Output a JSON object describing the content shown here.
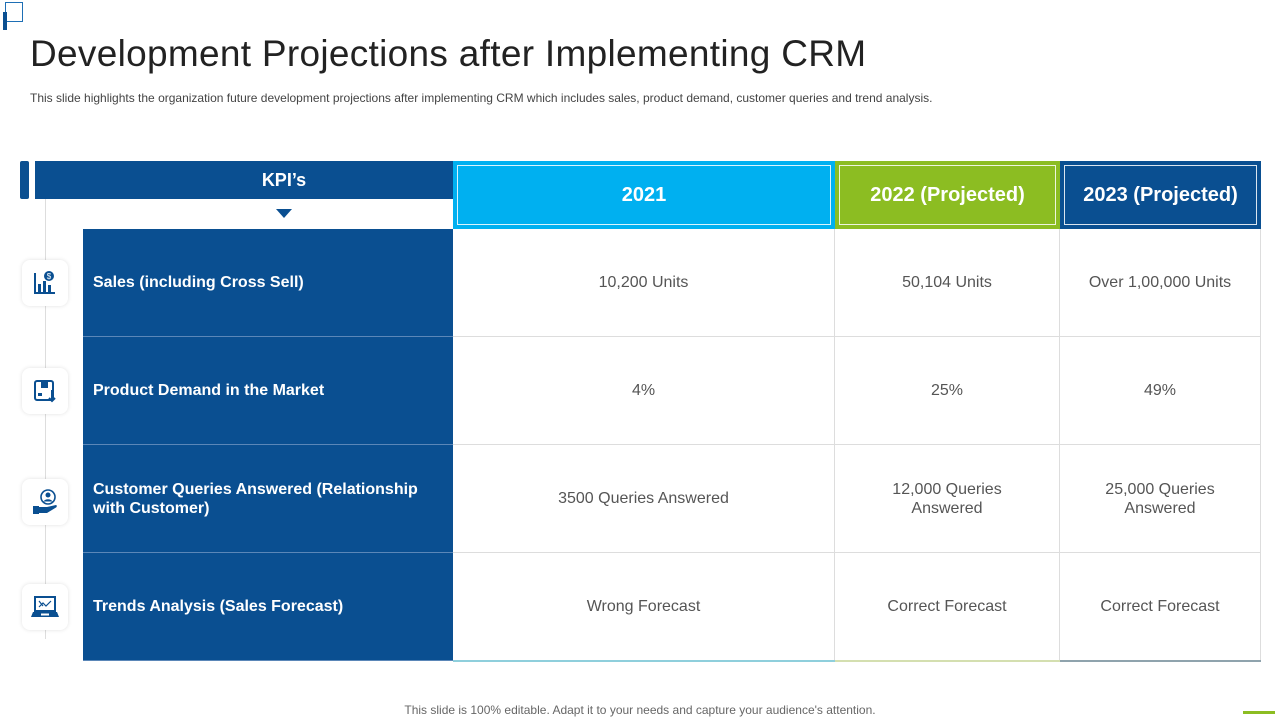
{
  "title": "Development Projections after Implementing CRM",
  "subtitle": "This slide highlights the organization future development  projections after implementing CRM which includes sales, product demand, customer queries and trend analysis.",
  "table": {
    "kpi_header": "KPI’s",
    "columns": [
      {
        "label": "2021",
        "color": "#00b0f0"
      },
      {
        "label": "2022 (Projected)",
        "color": "#8cbd22"
      },
      {
        "label": "2023 (Projected)",
        "color": "#0a4f91"
      }
    ],
    "rows": [
      {
        "kpi": "Sales (including Cross Sell)",
        "icon": "sales-chart-icon",
        "values": [
          "10,200 Units",
          "50,104 Units",
          "Over 1,00,000 Units"
        ]
      },
      {
        "kpi": "Product Demand in the Market",
        "icon": "product-box-icon",
        "values": [
          "4%",
          "25%",
          "49%"
        ]
      },
      {
        "kpi": "Customer Queries Answered (Relationship with Customer)",
        "icon": "customer-hand-icon",
        "values": [
          "3500 Queries Answered",
          "12,000 Queries Answered",
          "25,000 Queries Answered"
        ]
      },
      {
        "kpi": "Trends Analysis  (Sales Forecast)",
        "icon": "laptop-chart-icon",
        "values": [
          "Wrong Forecast",
          "Correct Forecast",
          "Correct Forecast"
        ]
      }
    ]
  },
  "footer": "This slide is 100% editable. Adapt it to your needs and capture your audience's attention."
}
